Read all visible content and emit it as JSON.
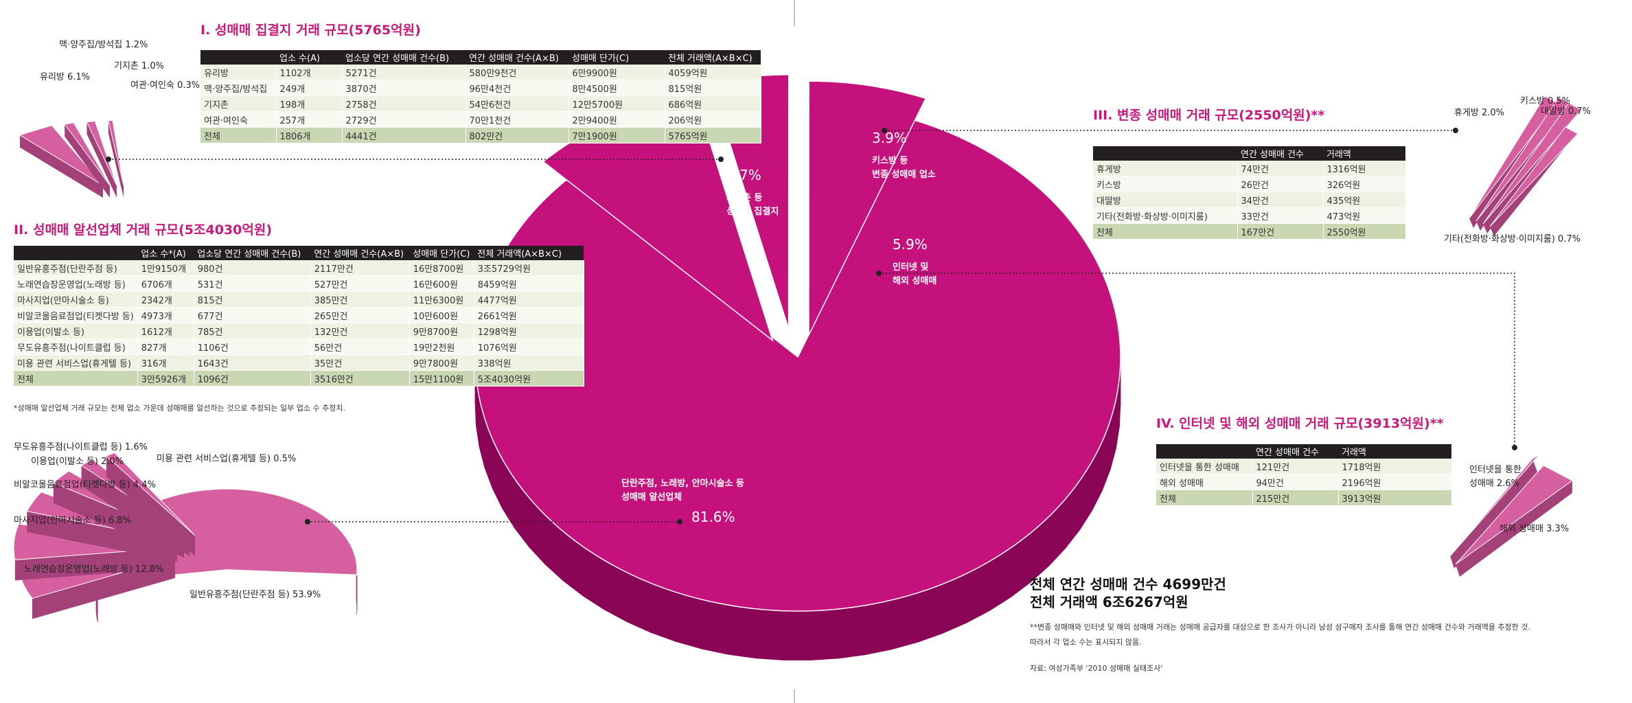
{
  "colors": {
    "main_pie": "#c4117c",
    "main_pie_side": "#8a0556",
    "sub_pie": "#d6609f",
    "sub_pie_side": "#a34178",
    "title": "#c8197a",
    "table_header": "#231f20"
  },
  "chart_data": [
    {
      "type": "pie",
      "title": "",
      "slices": [
        {
          "label": "단란주점, 노래방, 안마시술소 등 성매매 알선업체",
          "value": 81.6,
          "value_label": "81.6%",
          "label_lines": [
            "단란주점, 노래방, 안마시술소 등",
            "성매매 알선업체"
          ]
        },
        {
          "label": "기지촌 등 성매매 집결지",
          "value": 8.7,
          "value_label": "8.7%",
          "label_lines": [
            "기지촌 등",
            "성매매 집결지"
          ]
        },
        {
          "label": "키스방 등 변종 성매매 업소",
          "value": 3.9,
          "value_label": "3.9%",
          "label_lines": [
            "키스방 등",
            "변종 성매매 업소"
          ]
        },
        {
          "label": "인터넷 및 해외 성매매",
          "value": 5.9,
          "value_label": "5.9%",
          "label_lines": [
            "인터넷 및",
            "해외 성매매"
          ]
        }
      ]
    },
    {
      "type": "pie",
      "slices": [
        {
          "label": "유리방 6.1%",
          "value": 6.1
        },
        {
          "label": "맥·양주집/방석집 1.2%",
          "value": 1.2
        },
        {
          "label": "기지촌 1.0%",
          "value": 1.0
        },
        {
          "label": "여관·여인숙 0.3%",
          "value": 0.3
        }
      ]
    },
    {
      "type": "pie",
      "slices": [
        {
          "label": "일반유흥주점(단란주점 등) 53.9%",
          "value": 53.9
        },
        {
          "label": "노래연습장운영업(노래방 등) 12.8%",
          "value": 12.8
        },
        {
          "label": "마사지업(안마시술소 등) 6.8%",
          "value": 6.8
        },
        {
          "label": "비알코올음료점업(티켓다방 등) 4.4%",
          "value": 4.4
        },
        {
          "label": "이용업(이발소 등) 2.0%",
          "value": 2.0
        },
        {
          "label": "무도유흥주점(나이트클럽 등) 1.6%",
          "value": 1.6
        },
        {
          "label": "미용 관련 서비스업(휴게텔 등) 0.5%",
          "value": 0.5
        }
      ]
    },
    {
      "type": "pie",
      "slices": [
        {
          "label": "휴게방 2.0%",
          "value": 2.0
        },
        {
          "label": "키스방 0.5%",
          "value": 0.5
        },
        {
          "label": "대딸방 0.7%",
          "value": 0.7
        },
        {
          "label": "기타(전화방·화상방·이미지룸) 0.7%",
          "value": 0.7
        }
      ]
    },
    {
      "type": "pie",
      "slices": [
        {
          "label": "인터넷을 통한 성매매 2.6%",
          "label_lines": [
            "인터넷을 통한",
            "성매매 2.6%"
          ],
          "value": 2.6
        },
        {
          "label": "해외 성매매 3.3%",
          "value": 3.3
        }
      ]
    }
  ],
  "sections": {
    "s1": {
      "title": "I. 성매매 집결지 거래 규모(5765억원)",
      "headers": [
        "",
        "업소 수(A)",
        "업소당 연간 성매매 건수(B)",
        "연간 성매매 건수(A×B)",
        "성매매 단가(C)",
        "전체 거래액(A×B×C)"
      ],
      "rows": [
        [
          "유리방",
          "1102개",
          "5271건",
          "580만9천건",
          "6만9900원",
          "4059억원"
        ],
        [
          "맥·양주집/방석집",
          "249개",
          "3870건",
          "96만4천건",
          "8만4500원",
          "815억원"
        ],
        [
          "기지촌",
          "198개",
          "2758건",
          "54만6천건",
          "12만5700원",
          "686억원"
        ],
        [
          "여관·여인숙",
          "257개",
          "2729건",
          "70만1천건",
          "2만9400원",
          "206억원"
        ],
        [
          "전체",
          "1806개",
          "4441건",
          "802만건",
          "7만1900원",
          "5765억원"
        ]
      ]
    },
    "s2": {
      "title": "II. 성매매 알선업체 거래 규모(5조4030억원)",
      "headers": [
        "",
        "업소 수*(A)",
        "업소당 연간 성매매 건수(B)",
        "연간 성매매 건수(A×B)",
        "성매매 단가(C)",
        "전체 거래액(A×B×C)"
      ],
      "rows": [
        [
          "일반유흥주점(단란주점 등)",
          "1만9150개",
          "980건",
          "2117만건",
          "16만8700원",
          "3조5729억원"
        ],
        [
          "노래연습장운영업(노래방 등)",
          "6706개",
          "531건",
          "527만건",
          "16만600원",
          "8459억원"
        ],
        [
          "마사지업(안마시술소 등)",
          "2342개",
          "815건",
          "385만건",
          "11만6300원",
          "4477억원"
        ],
        [
          "비알코올음료점업(티켓다방 등)",
          "4973개",
          "677건",
          "265만건",
          "10만600원",
          "2661억원"
        ],
        [
          "이용업(이발소 등)",
          "1612개",
          "785건",
          "132만건",
          "9만8700원",
          "1298억원"
        ],
        [
          "무도유흥주점(나이트클럽 등)",
          "827개",
          "1106건",
          "56만건",
          "19만2천원",
          "1076억원"
        ],
        [
          "미용 관련 서비스업(휴게텔 등)",
          "316개",
          "1643건",
          "35만건",
          "9만7800원",
          "338억원"
        ],
        [
          "전체",
          "3만5926개",
          "1096건",
          "3516만건",
          "15만1100원",
          "5조4030억원"
        ]
      ],
      "note": "*성매매 알선업체 거래 규모는 전체 업소 가운데 성매매를 알선하는 것으로 추정되는 일부 업소 수 추정치."
    },
    "s3": {
      "title": "III. 변종 성매매 거래 규모(2550억원)**",
      "headers": [
        "",
        "연간 성매매  건수",
        "거래액"
      ],
      "rows": [
        [
          "휴게방",
          "74만건",
          "1316억원"
        ],
        [
          "키스방",
          "26만건",
          "326억원"
        ],
        [
          "대딸방",
          "34만건",
          "435억원"
        ],
        [
          "기타(전화방·화상방·이미지룸)",
          "33만건",
          "473억원"
        ],
        [
          "전체",
          "167만건",
          "2550억원"
        ]
      ]
    },
    "s4": {
      "title": "IV. 인터넷 및 해외 성매매 거래 규모(3913억원)**",
      "headers": [
        "",
        "연간 성매매 건수",
        "거래액"
      ],
      "rows": [
        [
          "인터넷을 통한 성매매",
          "121만건",
          "1718억원"
        ],
        [
          "해외 성매매",
          "94만건",
          "2196억원"
        ],
        [
          "전체",
          "215만건",
          "3913억원"
        ]
      ]
    }
  },
  "summary": {
    "line1": "전체 연간 성매매 건수 4699만건",
    "line2": "전체 거래액 6조6267억원"
  },
  "footnote": {
    "line1": "**변종 성매매와 인터넷 및 해외 성매매 거래는 성매매 공급자를 대상으로 한 조사가 아니라 남성 성구매자 조사를 통해 연간 성매매 건수와 거래액을 추정한 것.",
    "line2": "따라서 각 업소 수는 표시되지 않음."
  },
  "source": "자료: 여성가족부 '2010 성매매 실태조사'"
}
